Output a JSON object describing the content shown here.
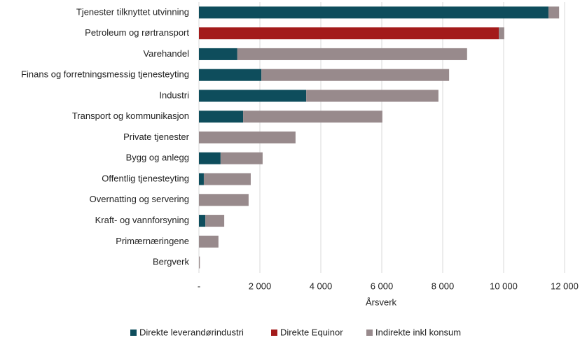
{
  "chart_data": {
    "type": "hbar_stacked",
    "categories": [
      "Tjenester tilknyttet utvinning",
      "Petroleum og rørtransport",
      "Varehandel",
      "Finans og forretningsmessig tjenesteyting",
      "Industri",
      "Transport og kommunikasjon",
      "Private tjenester",
      "Bygg og anlegg",
      "Offentlig tjenesteyting",
      "Overnatting og servering",
      "Kraft- og vannforsyning",
      "Primærnæringene",
      "Bergverk"
    ],
    "series": [
      {
        "name": "Direkte leverandørindustri",
        "color": "#0e4d5c",
        "values": [
          11470,
          0,
          1260,
          2050,
          3520,
          1450,
          0,
          710,
          160,
          0,
          210,
          0,
          0
        ]
      },
      {
        "name": "Direkte Equinor",
        "color": "#a31b1b",
        "values": [
          0,
          9840,
          0,
          0,
          0,
          0,
          0,
          0,
          0,
          0,
          0,
          0,
          0
        ]
      },
      {
        "name": "Indirekte inkl konsum",
        "color": "#988a8c",
        "values": [
          350,
          180,
          7540,
          6160,
          4340,
          4570,
          3170,
          1380,
          1540,
          1630,
          620,
          640,
          30
        ]
      }
    ],
    "xlabel": "Årsverk",
    "xlim": [
      0,
      12000
    ],
    "xticks": [
      {
        "value": 0,
        "label": "-"
      },
      {
        "value": 2000,
        "label": "2 000"
      },
      {
        "value": 4000,
        "label": "4 000"
      },
      {
        "value": 6000,
        "label": "6 000"
      },
      {
        "value": 8000,
        "label": "8 000"
      },
      {
        "value": 10000,
        "label": "10 000"
      },
      {
        "value": 12000,
        "label": "12 000"
      }
    ],
    "grid": true,
    "legend": "bottom"
  }
}
